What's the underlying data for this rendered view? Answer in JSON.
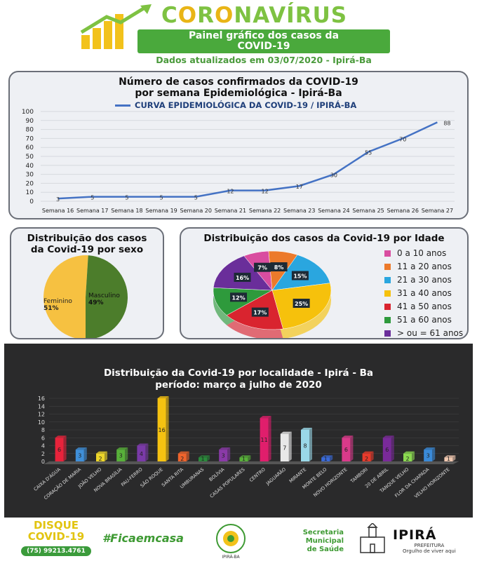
{
  "header": {
    "title_part1": "C",
    "title_part2": "R",
    "title_part3": "NAVÍRUS",
    "banner_line1": "Painel gráfico dos casos da",
    "banner_line2": "COVID-19",
    "update": "Dados atualizados em 03/07/2020 - Ipirá-Ba",
    "colors": {
      "green": "#4aa93c",
      "lime": "#7ec242",
      "gold": "#e9b516"
    }
  },
  "footer": {
    "disque_l1": "DISQUE",
    "disque_l2": "COVID-19",
    "phone": "(75) 99213.4761",
    "fica": "#Ficaemcasa",
    "comite_top": "COMITÊ ENFRENTAMENTO COVID19",
    "comite_bottom": "IPIRÁ-BA",
    "secretaria_l1": "Secretaria Municipal",
    "secretaria_l2": "de Saúde",
    "ipira_name": "IPIRÁ",
    "ipira_sub1": "PREFEITURA",
    "ipira_sub2": "Orgulho de viver aqui"
  },
  "chart_data": [
    {
      "type": "line",
      "title": "Número de casos confirmados da COVID-19\npor semana Epidemiológica - Ipirá-Ba",
      "title_l1": "Número de casos confirmados da COVID-19",
      "title_l2": "por semana Epidemiológica - Ipirá-Ba",
      "series": [
        {
          "name": "CURVA EPIDEMIOLÓGICA DA COVID-19 / IPIRÁ-BA",
          "values": [
            3,
            5,
            5,
            5,
            5,
            12,
            12,
            17,
            30,
            55,
            70,
            88
          ],
          "color": "#4472c4"
        }
      ],
      "categories": [
        "Semana 16",
        "Semana 17",
        "Semana 18",
        "Semana 19",
        "Semana 20",
        "Semana 21",
        "Semana 22",
        "Semana 23",
        "Semana 24",
        "Semana 25",
        "Semana 26",
        "Semana 27"
      ],
      "ylim": [
        0,
        100
      ],
      "yticks": [
        0,
        10,
        20,
        30,
        40,
        50,
        60,
        70,
        80,
        90,
        100
      ],
      "grid": true
    },
    {
      "type": "pie",
      "title": "Distribuição dos casos\nda Covid-19 por sexo",
      "title_l1": "Distribuição dos casos",
      "title_l2": "da Covid-19 por sexo",
      "slices": [
        {
          "label": "Feminino",
          "pct": "51%",
          "value": 51,
          "color": "#f6c141"
        },
        {
          "label": "Masculino",
          "pct": "49%",
          "value": 49,
          "color": "#4c7d2b"
        }
      ]
    },
    {
      "type": "pie",
      "title": "Distribuição dos casos da Covid-19 por Idade",
      "slices": [
        {
          "label": "0  a 10  anos",
          "pct": "7%",
          "value": 7,
          "color": "#d94da0"
        },
        {
          "label": "11  a 20 anos",
          "pct": "8%",
          "value": 8,
          "color": "#ec7a2b"
        },
        {
          "label": "21 a 30 anos",
          "pct": "15%",
          "value": 15,
          "color": "#2aa6df"
        },
        {
          "label": "31 a 40 anos",
          "pct": "25%",
          "value": 25,
          "color": "#f6c10c"
        },
        {
          "label": "41 a 50 anos",
          "pct": "17%",
          "value": 17,
          "color": "#d9242f"
        },
        {
          "label": "51 a 60 anos",
          "pct": "12%",
          "value": 12,
          "color": "#2e9a3c"
        },
        {
          "label": "> ou = 61 anos",
          "pct": "16%",
          "value": 16,
          "color": "#6a2e9a"
        }
      ],
      "legend": "right"
    },
    {
      "type": "bar",
      "title": "Distribuição da Covid-19 por localidade - Ipirá - Ba\nperíodo: março a julho de 2020",
      "title_l1": "Distribuição da Covid-19 por localidade - Ipirá - Ba",
      "title_l2": "período: março a julho de 2020",
      "categories": [
        "CAIXA D'ÁGUA",
        "CORAÇÃO DE MARIA",
        "JOÃO VELHO",
        "NOVA BRASÍLIA",
        "PAU-FERRO",
        "SÃO ROQUE",
        "SANTA RITA",
        "UMBURANAS",
        "BOLÍVIA",
        "CASAS POPULARES",
        "CENTRO",
        "JAGUARÃO",
        "MIRANTE",
        "MONTE BELO",
        "NOVO HORIZONTE",
        "TAMBORI",
        "20 DE ABRIL",
        "TANQUE VELHO",
        "FLOR DA CHAPADA",
        "VELHO HORIZONTE"
      ],
      "values": [
        6,
        3,
        2,
        3,
        4,
        16,
        2,
        1,
        3,
        1,
        11,
        7,
        8,
        1,
        6,
        2,
        6,
        2,
        3,
        1
      ],
      "colors": [
        "#e8233b",
        "#3f8fd8",
        "#ecd52a",
        "#58b03a",
        "#7a3aa8",
        "#f5c211",
        "#f0642c",
        "#2a8a3b",
        "#8a3aa8",
        "#58b03a",
        "#e01e6c",
        "#e8e8e8",
        "#9ad8e8",
        "#3a6ad8",
        "#d93a8a",
        "#e83a2b",
        "#7a2a9a",
        "#8ad850",
        "#3a8ad8",
        "#f0c8b0"
      ],
      "ylim": [
        0,
        16
      ],
      "yticks": [
        0,
        2,
        4,
        6,
        8,
        10,
        12,
        14,
        16
      ]
    }
  ]
}
